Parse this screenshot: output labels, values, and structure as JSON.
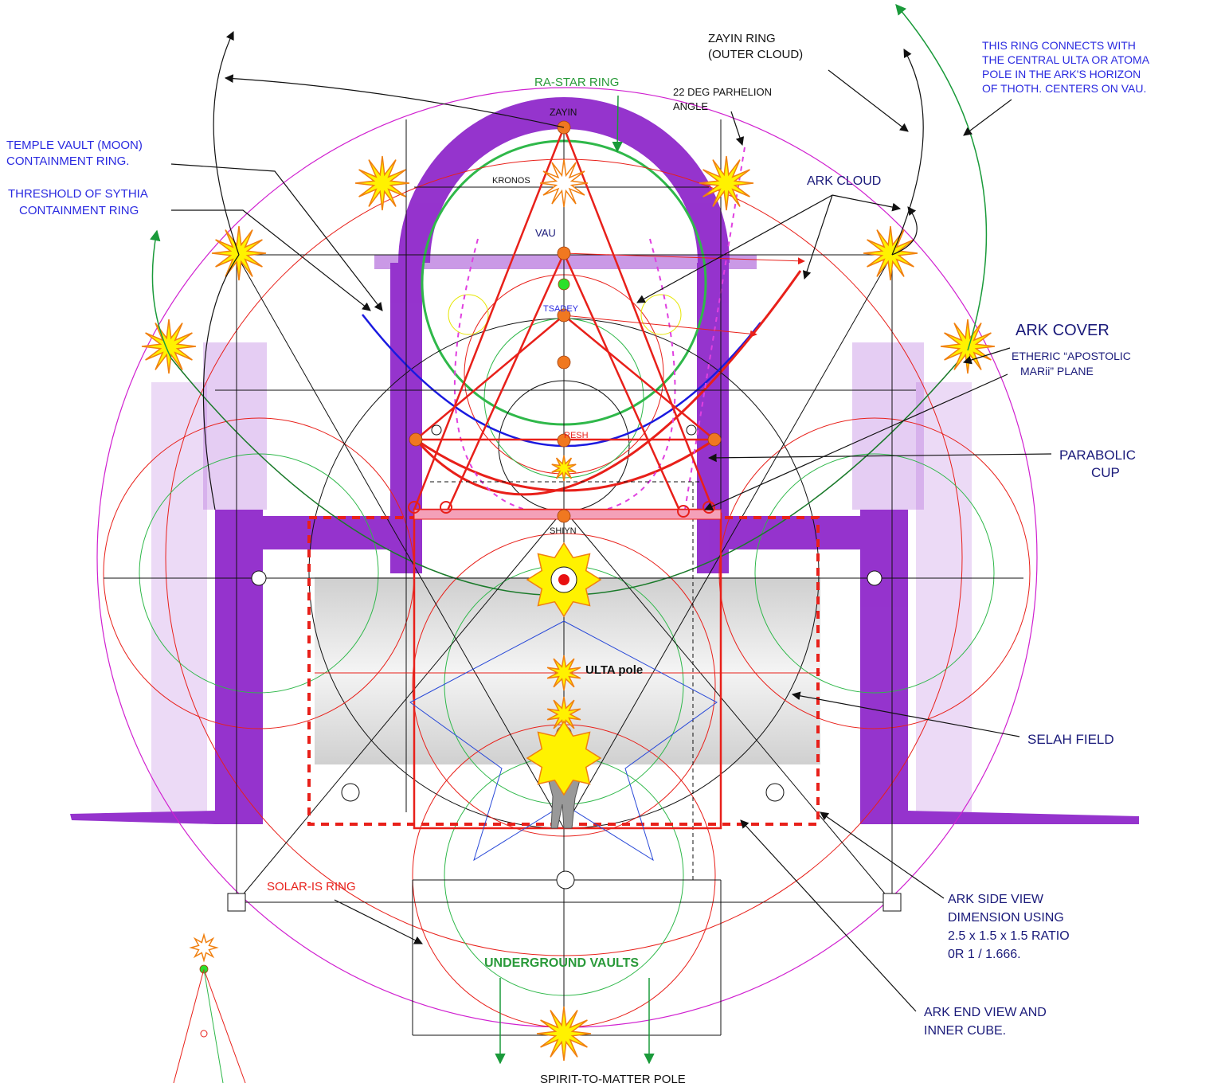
{
  "labels": {
    "zayin_ring": [
      "ZAYIN RING",
      "(OUTER CLOUD)"
    ],
    "ring_connects": [
      "THIS RING CONNECTS WITH",
      "THE CENTRAL ULTA OR ATOMA",
      "POLE IN THE ARK'S HORIZON",
      "OF THOTH.  CENTERS ON VAU."
    ],
    "ra_star_ring": "RA-STAR RING",
    "parhelion": [
      "22 DEG PARHELION",
      "ANGLE"
    ],
    "zayin": "ZAYIN",
    "temple_vault": [
      "TEMPLE VAULT (MOON)",
      "CONTAINMENT RING."
    ],
    "threshold": [
      "THRESHOLD OF SYTHIA",
      "CONTAINMENT RING"
    ],
    "kronos": "KRONOS",
    "ark_cloud": "ARK CLOUD",
    "vau": "VAU",
    "tsadey": "TSADEY",
    "ark_cover": "ARK COVER",
    "etheric": [
      "ETHERIC “APOSTOLIC",
      "MARii” PLANE"
    ],
    "resh": "RESH",
    "parabolic_cup": [
      "PARABOLIC",
      "CUP"
    ],
    "shiyn": "SHIYN",
    "ulta_pole": "ULTA pole",
    "selah_field": "SELAH FIELD",
    "solar_is_ring": "SOLAR-IS RING",
    "ark_side_view": [
      "ARK SIDE VIEW",
      "DIMENSION USING",
      "2.5 x 1.5 x 1.5  RATIO",
      "0R 1 / 1.666."
    ],
    "underground_vaults": "UNDERGROUND VAULTS",
    "ark_end_view": [
      "ARK END VIEW AND",
      "INNER CUBE."
    ],
    "spirit_to_matter_pole": "SPIRIT-TO-MATTER POLE"
  }
}
